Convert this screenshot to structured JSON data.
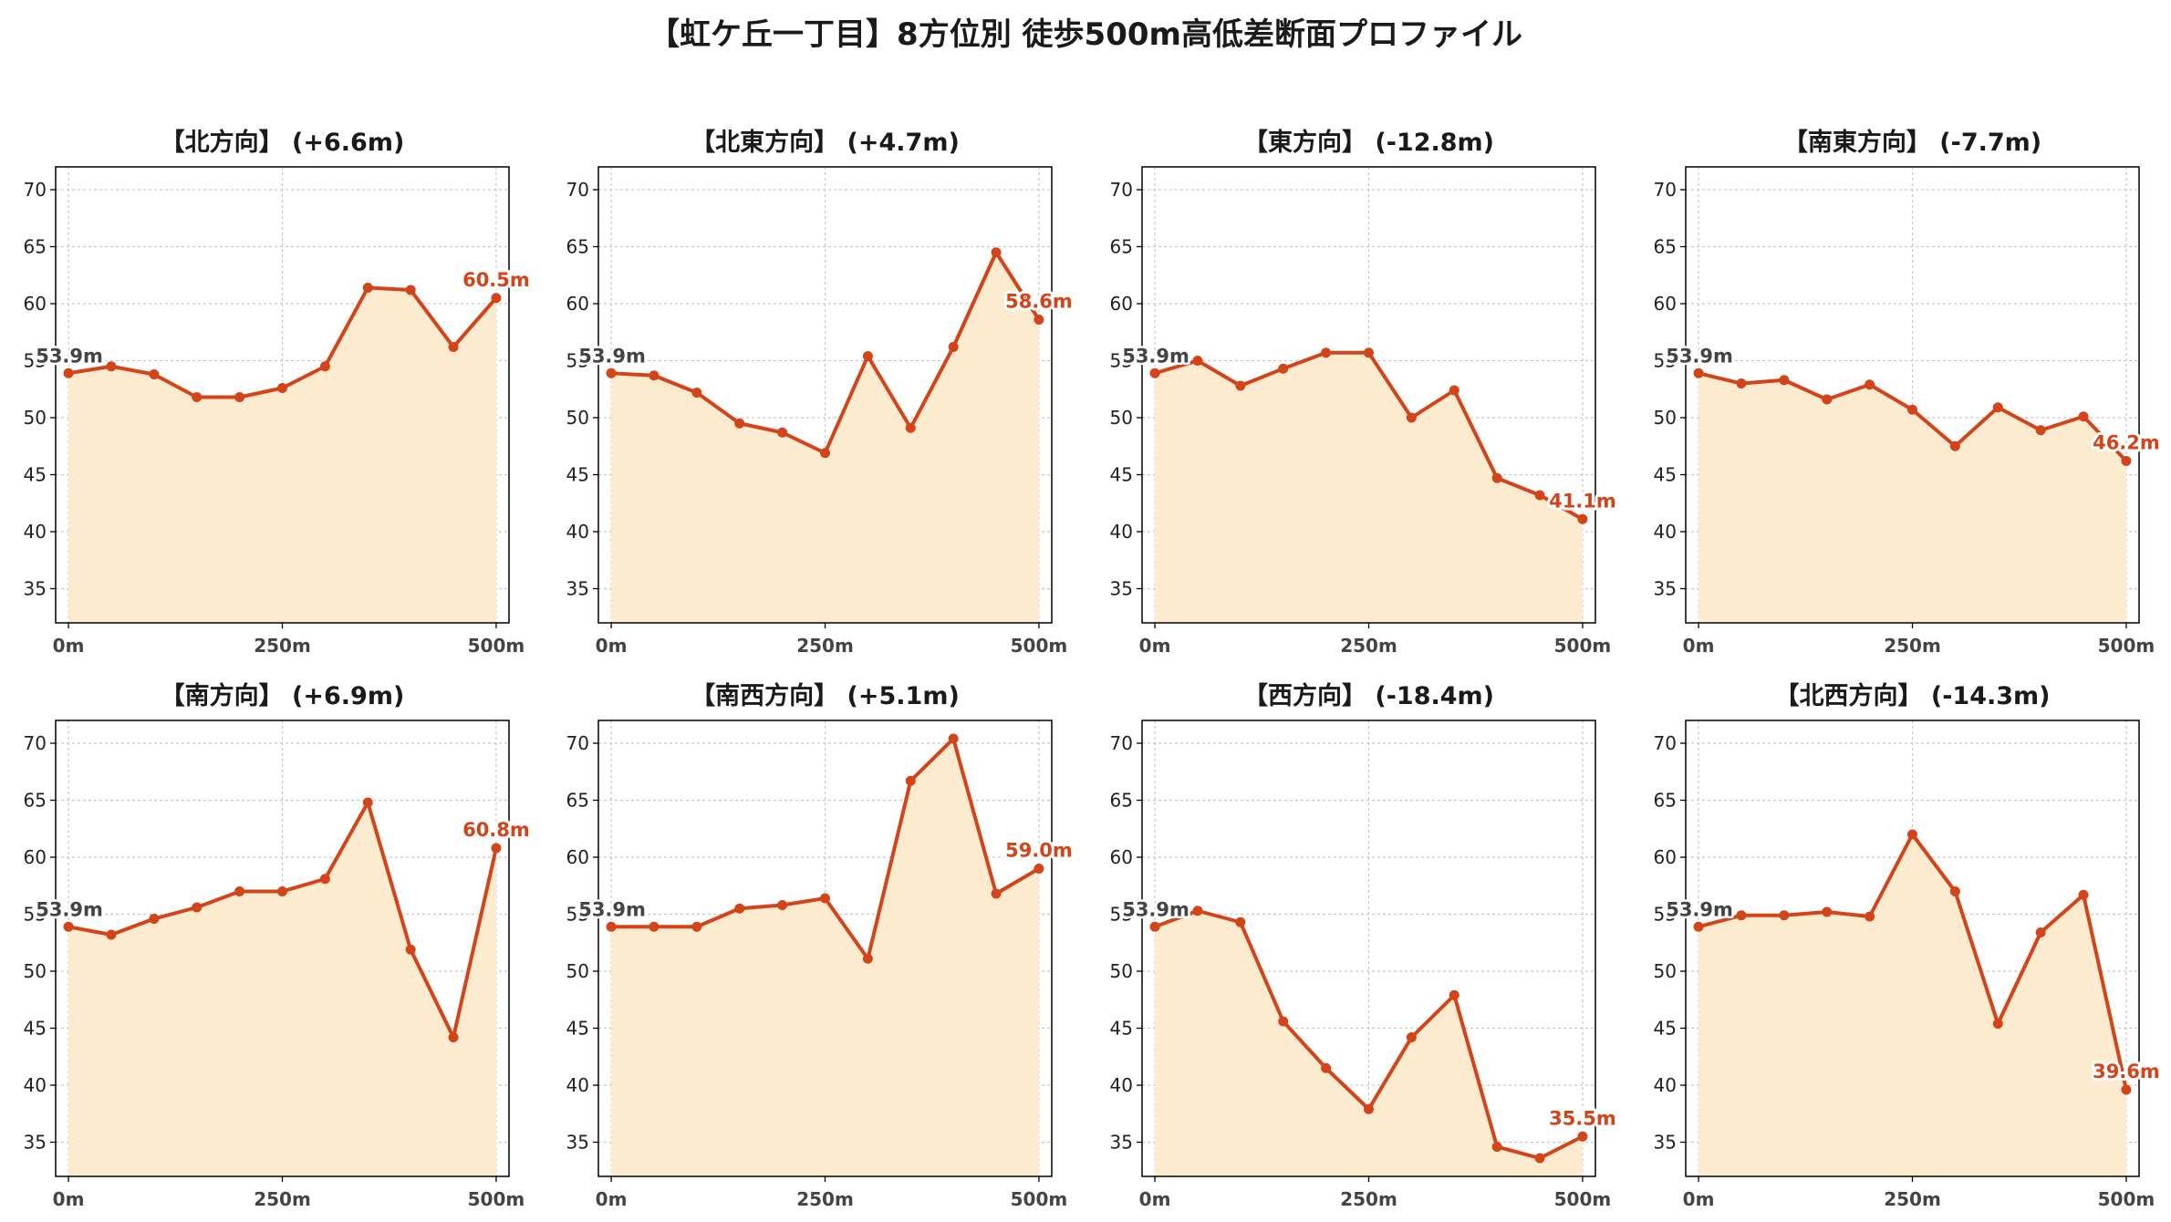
{
  "title": "【虹ケ丘一丁目】8方位別 徒歩500m高低差断面プロファイル",
  "colors": {
    "line": "#d4441a",
    "fill": "#fdebd0",
    "grid": "#c8c8c8",
    "start_label": "#444444"
  },
  "chart_data": [
    {
      "type": "area",
      "title": "【北方向】 (+6.6m)",
      "x": [
        0,
        50,
        100,
        150,
        200,
        250,
        300,
        350,
        400,
        450,
        500
      ],
      "y": [
        53.9,
        54.5,
        53.8,
        51.8,
        51.8,
        52.6,
        54.5,
        61.4,
        61.2,
        56.2,
        60.5
      ],
      "start_label": "53.9m",
      "end_label": "60.5m",
      "ylim": [
        32,
        72
      ],
      "yticks": [
        35,
        40,
        45,
        50,
        55,
        60,
        65,
        70
      ],
      "xticks": [
        0,
        250,
        500
      ],
      "xtick_labels": [
        "0m",
        "250m",
        "500m"
      ],
      "grid": true
    },
    {
      "type": "area",
      "title": "【北東方向】 (+4.7m)",
      "x": [
        0,
        50,
        100,
        150,
        200,
        250,
        300,
        350,
        400,
        450,
        500
      ],
      "y": [
        53.9,
        53.7,
        52.2,
        49.5,
        48.7,
        46.9,
        55.4,
        49.1,
        56.2,
        64.5,
        58.6
      ],
      "start_label": "53.9m",
      "end_label": "58.6m",
      "ylim": [
        32,
        72
      ],
      "yticks": [
        35,
        40,
        45,
        50,
        55,
        60,
        65,
        70
      ],
      "xticks": [
        0,
        250,
        500
      ],
      "xtick_labels": [
        "0m",
        "250m",
        "500m"
      ],
      "grid": true
    },
    {
      "type": "area",
      "title": "【東方向】 (-12.8m)",
      "x": [
        0,
        50,
        100,
        150,
        200,
        250,
        300,
        350,
        400,
        450,
        500
      ],
      "y": [
        53.9,
        55.0,
        52.8,
        54.3,
        55.7,
        55.7,
        50.0,
        52.4,
        44.7,
        43.2,
        41.1
      ],
      "start_label": "53.9m",
      "end_label": "41.1m",
      "ylim": [
        32,
        72
      ],
      "yticks": [
        35,
        40,
        45,
        50,
        55,
        60,
        65,
        70
      ],
      "xticks": [
        0,
        250,
        500
      ],
      "xtick_labels": [
        "0m",
        "250m",
        "500m"
      ],
      "grid": true
    },
    {
      "type": "area",
      "title": "【南東方向】 (-7.7m)",
      "x": [
        0,
        50,
        100,
        150,
        200,
        250,
        300,
        350,
        400,
        450,
        500
      ],
      "y": [
        53.9,
        53.0,
        53.3,
        51.6,
        52.9,
        50.7,
        47.5,
        50.9,
        48.9,
        50.1,
        46.2
      ],
      "start_label": "53.9m",
      "end_label": "46.2m",
      "ylim": [
        32,
        72
      ],
      "yticks": [
        35,
        40,
        45,
        50,
        55,
        60,
        65,
        70
      ],
      "xticks": [
        0,
        250,
        500
      ],
      "xtick_labels": [
        "0m",
        "250m",
        "500m"
      ],
      "grid": true
    },
    {
      "type": "area",
      "title": "【南方向】 (+6.9m)",
      "x": [
        0,
        50,
        100,
        150,
        200,
        250,
        300,
        350,
        400,
        450,
        500
      ],
      "y": [
        53.9,
        53.2,
        54.6,
        55.6,
        57.0,
        57.0,
        58.1,
        64.8,
        51.9,
        44.2,
        60.8
      ],
      "start_label": "53.9m",
      "end_label": "60.8m",
      "ylim": [
        32,
        72
      ],
      "yticks": [
        35,
        40,
        45,
        50,
        55,
        60,
        65,
        70
      ],
      "xticks": [
        0,
        250,
        500
      ],
      "xtick_labels": [
        "0m",
        "250m",
        "500m"
      ],
      "grid": true
    },
    {
      "type": "area",
      "title": "【南西方向】 (+5.1m)",
      "x": [
        0,
        50,
        100,
        150,
        200,
        250,
        300,
        350,
        400,
        450,
        500
      ],
      "y": [
        53.9,
        53.9,
        53.9,
        55.5,
        55.8,
        56.4,
        51.1,
        66.7,
        70.4,
        56.8,
        59.0
      ],
      "start_label": "53.9m",
      "end_label": "59.0m",
      "ylim": [
        32,
        72
      ],
      "yticks": [
        35,
        40,
        45,
        50,
        55,
        60,
        65,
        70
      ],
      "xticks": [
        0,
        250,
        500
      ],
      "xtick_labels": [
        "0m",
        "250m",
        "500m"
      ],
      "grid": true
    },
    {
      "type": "area",
      "title": "【西方向】 (-18.4m)",
      "x": [
        0,
        50,
        100,
        150,
        200,
        250,
        300,
        350,
        400,
        450,
        500
      ],
      "y": [
        53.9,
        55.3,
        54.3,
        45.6,
        41.5,
        37.9,
        44.2,
        47.9,
        34.6,
        33.6,
        35.5
      ],
      "start_label": "53.9m",
      "end_label": "35.5m",
      "ylim": [
        32,
        72
      ],
      "yticks": [
        35,
        40,
        45,
        50,
        55,
        60,
        65,
        70
      ],
      "xticks": [
        0,
        250,
        500
      ],
      "xtick_labels": [
        "0m",
        "250m",
        "500m"
      ],
      "grid": true
    },
    {
      "type": "area",
      "title": "【北西方向】 (-14.3m)",
      "x": [
        0,
        50,
        100,
        150,
        200,
        250,
        300,
        350,
        400,
        450,
        500
      ],
      "y": [
        53.9,
        54.9,
        54.9,
        55.2,
        54.8,
        62.0,
        57.0,
        45.4,
        53.4,
        56.7,
        39.6
      ],
      "start_label": "53.9m",
      "end_label": "39.6m",
      "ylim": [
        32,
        72
      ],
      "yticks": [
        35,
        40,
        45,
        50,
        55,
        60,
        65,
        70
      ],
      "xticks": [
        0,
        250,
        500
      ],
      "xtick_labels": [
        "0m",
        "250m",
        "500m"
      ],
      "grid": true
    }
  ]
}
